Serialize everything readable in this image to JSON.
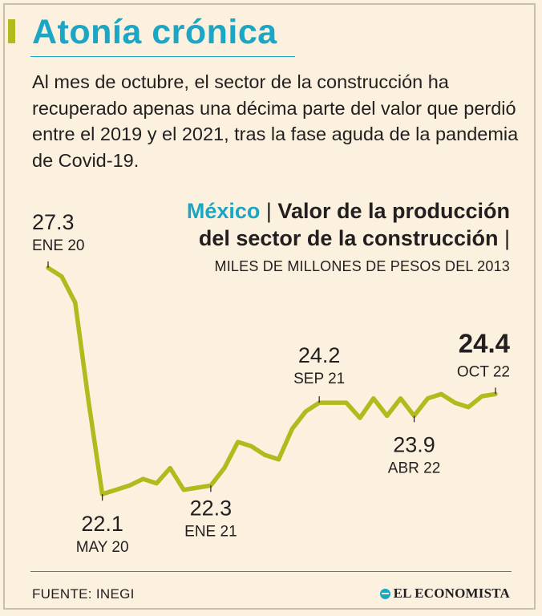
{
  "header": {
    "title": "Atonía crónica",
    "subtitle": "Al mes de octubre, el sector de la construcción ha recuperado apenas una décima parte del valor que perdió entre el 2019 y el 2021, tras la fase aguda de la pandemia de Covid-19."
  },
  "chart_heading": {
    "country": "México",
    "line1": "Valor de la producción",
    "line2": "del sector de la construcción",
    "separator": "|",
    "units": "MILES DE MILLONES DE PESOS DEL 2013"
  },
  "chart_data": {
    "type": "line",
    "title": "Valor de la producción del sector de la construcción",
    "ylabel": "Miles de millones de pesos del 2013",
    "ylim": [
      21.9,
      27.5
    ],
    "x_start": "ENE 20",
    "x_end": "OCT 22",
    "color": "#b2bb1e",
    "series": [
      {
        "name": "México",
        "values": [
          27.3,
          27.1,
          26.5,
          24.2,
          22.1,
          22.2,
          22.3,
          22.45,
          22.35,
          22.7,
          22.2,
          22.25,
          22.3,
          22.7,
          23.3,
          23.2,
          23.0,
          22.9,
          23.6,
          24.0,
          24.2,
          24.2,
          24.2,
          23.85,
          24.3,
          23.9,
          24.3,
          23.9,
          24.3,
          24.4,
          24.2,
          24.1,
          24.35,
          24.4
        ]
      }
    ],
    "annotations": [
      {
        "index": 0,
        "value": "27.3",
        "label": "ENE 20"
      },
      {
        "index": 4,
        "value": "22.1",
        "label": "MAY 20"
      },
      {
        "index": 12,
        "value": "22.3",
        "label": "ENE 21"
      },
      {
        "index": 20,
        "value": "24.2",
        "label": "SEP 21"
      },
      {
        "index": 27,
        "value": "23.9",
        "label": "ABR 22"
      },
      {
        "index": 33,
        "value": "24.4",
        "label": "OCT 22"
      }
    ]
  },
  "footer": {
    "source": "FUENTE: INEGI",
    "brand": "EL ECONOMISTA"
  }
}
